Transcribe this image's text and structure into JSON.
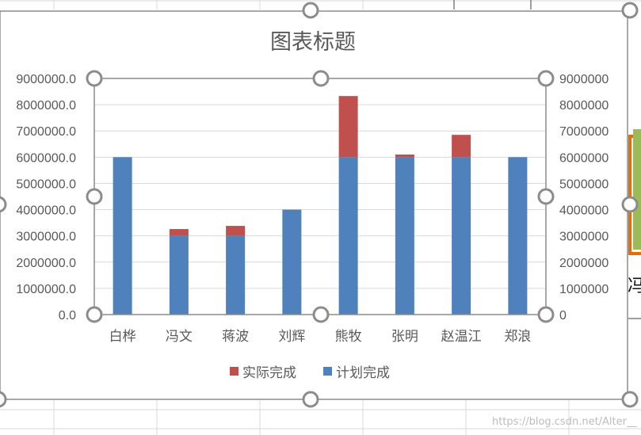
{
  "chart_data": {
    "type": "bar",
    "stacked": true,
    "title": "图表标题",
    "categories": [
      "白桦",
      "冯文",
      "蒋波",
      "刘辉",
      "熊牧",
      "张明",
      "赵温江",
      "郑浪"
    ],
    "series": [
      {
        "name": "计划完成",
        "color": "#4f81bd",
        "values": [
          6000000,
          3000000,
          3000000,
          4000000,
          6000000,
          6000000,
          6000000,
          6000000
        ]
      },
      {
        "name": "实际完成",
        "color": "#c0504d",
        "values": [
          0,
          260000,
          380000,
          0,
          2330000,
          100000,
          850000,
          0
        ]
      }
    ],
    "legend_order": [
      "实际完成",
      "计划完成"
    ],
    "legend_position": "bottom",
    "ylim": [
      0,
      9000000
    ],
    "ytick_step": 1000000,
    "y_left_ticks": [
      "0.0",
      "1000000.0",
      "2000000.0",
      "3000000.0",
      "4000000.0",
      "5000000.0",
      "6000000.0",
      "7000000.0",
      "8000000.0",
      "9000000.0"
    ],
    "y_right_ticks": [
      "0",
      "1000000",
      "2000000",
      "3000000",
      "4000000",
      "5000000",
      "6000000",
      "7000000",
      "8000000",
      "9000000"
    ],
    "grid": true
  },
  "side_chart_label": "冯",
  "watermark": "https://blog.csdn.net/Alter__"
}
